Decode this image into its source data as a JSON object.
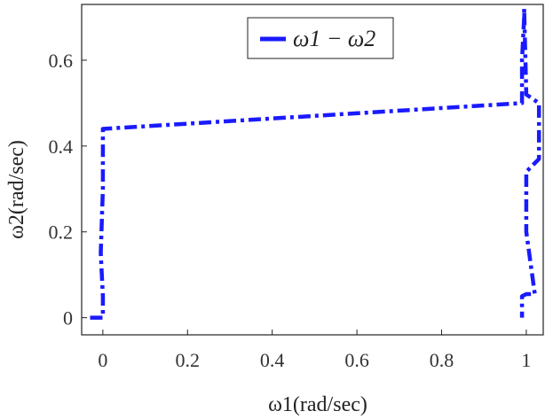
{
  "chart_data": {
    "type": "line",
    "title": "",
    "xlabel": "ω1(rad/sec)",
    "ylabel": "ω2(rad/sec)",
    "xlim": [
      -0.05,
      1.04
    ],
    "ylim": [
      -0.04,
      0.73
    ],
    "x_ticks": [
      0,
      0.2,
      0.4,
      0.6,
      0.8,
      1
    ],
    "x_tick_labels": [
      "0",
      "0.2",
      "0.4",
      "0.6",
      "0.8",
      "1"
    ],
    "y_ticks": [
      0,
      0.2,
      0.4,
      0.6
    ],
    "y_tick_labels": [
      "0",
      "0.2",
      "0.4",
      "0.6"
    ],
    "grid": false,
    "legend_position": "top-center",
    "series": [
      {
        "name": "ω1 − ω2",
        "color": "#1a1aff",
        "line_style": "dash-dot",
        "x": [
          -0.03,
          0.0,
          0.0,
          0.0,
          -0.005,
          0.0,
          0.0,
          0.0,
          0.99,
          0.99,
          0.99,
          0.995,
          0.995,
          1.0,
          1.03,
          1.03,
          1.03,
          1.0,
          1.0,
          1.02,
          1.0,
          0.99,
          0.99,
          0.99
        ],
        "y": [
          0.0,
          0.0,
          0.0,
          0.05,
          0.15,
          0.3,
          0.4,
          0.44,
          0.5,
          0.52,
          0.6,
          0.7,
          0.72,
          0.52,
          0.5,
          0.48,
          0.37,
          0.34,
          0.2,
          0.055,
          0.055,
          0.05,
          0.02,
          0.0
        ]
      }
    ]
  }
}
